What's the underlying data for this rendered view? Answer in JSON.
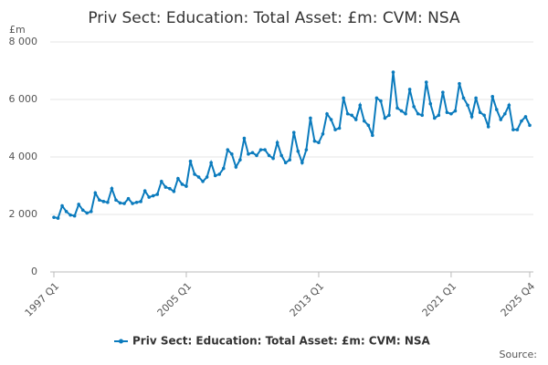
{
  "chart_data": {
    "type": "line",
    "title": "Priv Sect: Education: Total Asset: £m: CVM: NSA",
    "y_unit": "£m",
    "source": "Source:",
    "categories": [
      "1997 Q1",
      null,
      null,
      null,
      null,
      null,
      null,
      null,
      null,
      null,
      null,
      null,
      null,
      null,
      null,
      null,
      null,
      null,
      null,
      null,
      null,
      null,
      null,
      null,
      null,
      null,
      null,
      null,
      null,
      null,
      null,
      null,
      "2005 Q1",
      null,
      null,
      null,
      null,
      null,
      null,
      null,
      null,
      null,
      null,
      null,
      null,
      null,
      null,
      null,
      null,
      null,
      null,
      null,
      null,
      null,
      null,
      null,
      null,
      null,
      null,
      null,
      null,
      null,
      null,
      null,
      "2013 Q1",
      null,
      null,
      null,
      null,
      null,
      null,
      null,
      null,
      null,
      null,
      null,
      null,
      null,
      null,
      null,
      null,
      null,
      null,
      null,
      null,
      null,
      null,
      null,
      null,
      null,
      null,
      null,
      null,
      null,
      null,
      null,
      "2021 Q1",
      null,
      null,
      null,
      null,
      null,
      null,
      null,
      null,
      null,
      null,
      null,
      null,
      null,
      null,
      null,
      null,
      null,
      null,
      "2025 Q4"
    ],
    "series": [
      {
        "name": "Priv Sect: Education: Total Asset: £m: CVM: NSA",
        "color": "#0b7bbd",
        "values": [
          1900,
          1870,
          2300,
          2100,
          1980,
          1950,
          2350,
          2150,
          2050,
          2100,
          2750,
          2500,
          2450,
          2420,
          2900,
          2500,
          2400,
          2380,
          2550,
          2380,
          2420,
          2450,
          2820,
          2600,
          2650,
          2700,
          3150,
          2950,
          2900,
          2800,
          3250,
          3050,
          2980,
          3850,
          3400,
          3300,
          3150,
          3300,
          3800,
          3350,
          3400,
          3600,
          4250,
          4100,
          3650,
          3900,
          4650,
          4100,
          4150,
          4050,
          4250,
          4250,
          4050,
          3950,
          4500,
          4050,
          3800,
          3900,
          4850,
          4200,
          3800,
          4250,
          5350,
          4550,
          4500,
          4800,
          5500,
          5300,
          4950,
          5000,
          6050,
          5500,
          5450,
          5300,
          5800,
          5250,
          5100,
          4750,
          6050,
          5950,
          5350,
          5450,
          6950,
          5700,
          5600,
          5500,
          6350,
          5750,
          5500,
          5450,
          6600,
          5850,
          5350,
          5450,
          6250,
          5550,
          5500,
          5600,
          6550,
          6050,
          5800,
          5400,
          6050,
          5550,
          5450,
          5050,
          6100,
          5650,
          5300,
          5500,
          5800,
          4950,
          4950,
          5250,
          5400,
          5100
        ]
      }
    ],
    "ylim": [
      0,
      8000
    ],
    "yticks": [
      0,
      {
        "value": 2000,
        "label": "2 000"
      },
      {
        "value": 4000,
        "label": "4 000"
      },
      {
        "value": 6000,
        "label": "6 000"
      },
      {
        "value": 8000,
        "label": "8 000"
      }
    ],
    "grid": true
  }
}
